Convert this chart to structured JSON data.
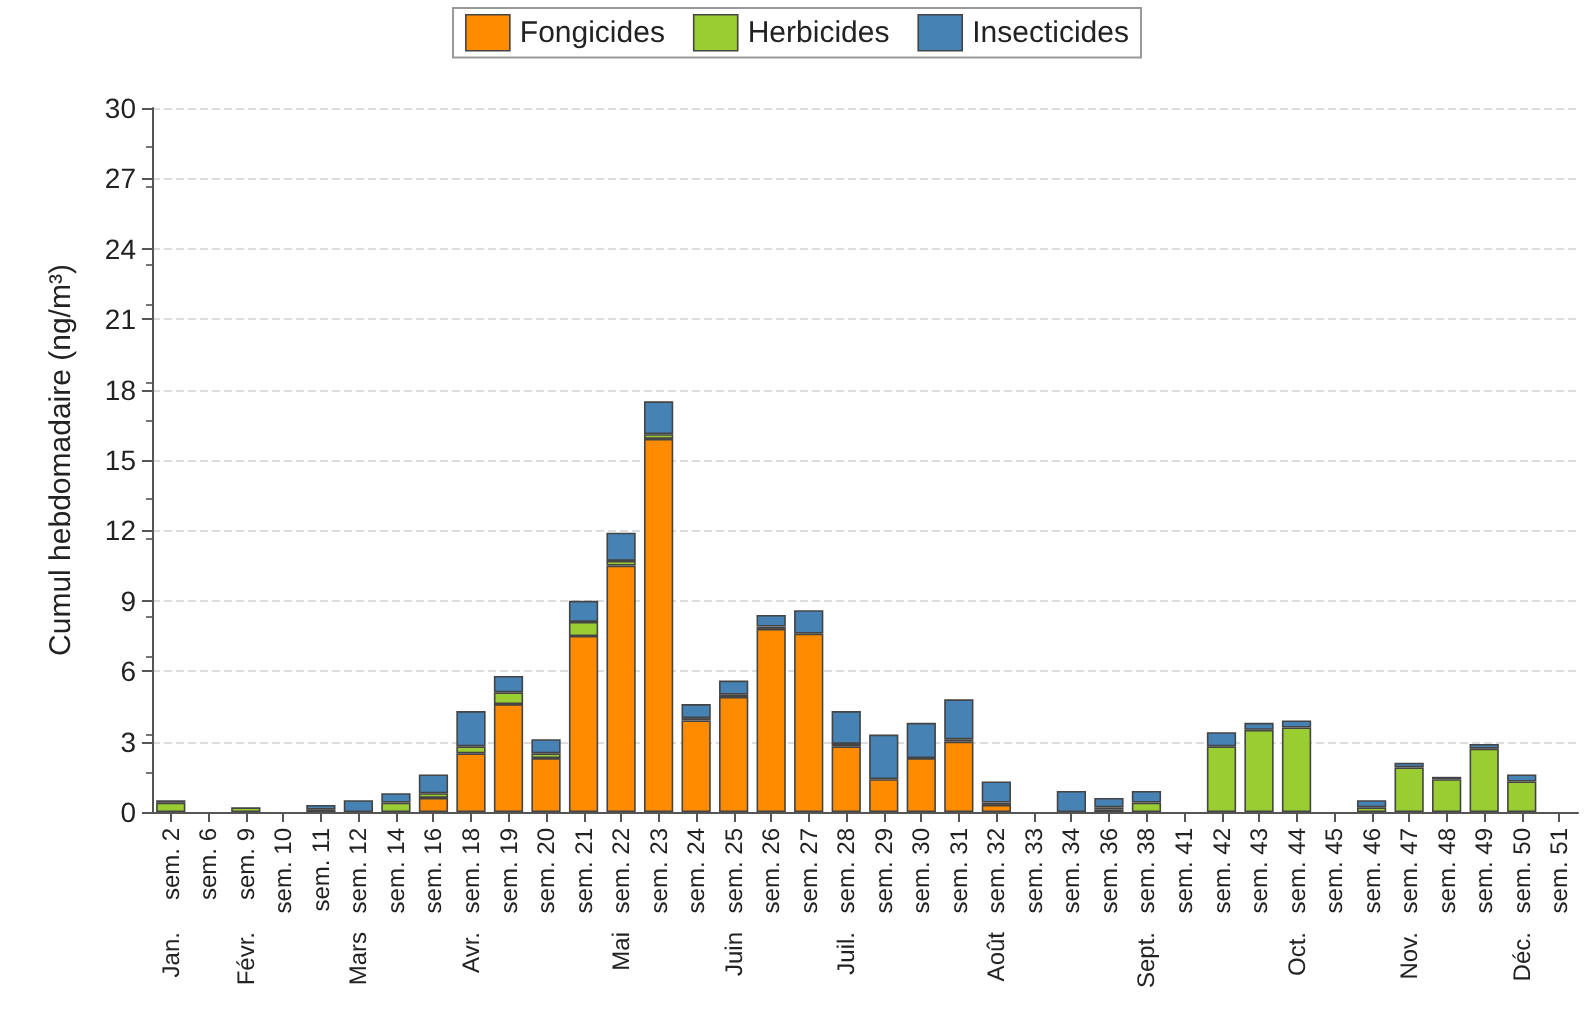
{
  "chart_data": {
    "type": "bar",
    "stacked": true,
    "ylabel": "Cumul hebdomadaire (ng/m³)",
    "categories": [
      "sem. 2",
      "sem. 6",
      "sem. 9",
      "sem. 10",
      "sem. 11",
      "sem. 12",
      "sem. 14",
      "sem. 16",
      "sem. 18",
      "sem. 19",
      "sem. 20",
      "sem. 21",
      "sem. 22",
      "sem. 23",
      "sem. 24",
      "sem. 25",
      "sem. 26",
      "sem. 27",
      "sem. 28",
      "sem. 29",
      "sem. 30",
      "sem. 31",
      "sem. 32",
      "sem. 33",
      "sem. 34",
      "sem. 36",
      "sem. 38",
      "sem. 41",
      "sem. 42",
      "sem. 43",
      "sem. 44",
      "sem. 45",
      "sem. 46",
      "sem. 47",
      "sem. 48",
      "sem. 49",
      "sem. 50",
      "sem. 51"
    ],
    "series": [
      {
        "name": "Fongicides",
        "color": "#ff8c00",
        "values": [
          0,
          0,
          0,
          0,
          0,
          0,
          0,
          0.6,
          2.5,
          4.6,
          2.3,
          7.5,
          10.5,
          15.9,
          3.9,
          4.9,
          7.8,
          7.6,
          2.8,
          1.4,
          2.3,
          3.0,
          0.3,
          0,
          0,
          0.1,
          0,
          0,
          0,
          0,
          0,
          0,
          0,
          0,
          0,
          0,
          0,
          0
        ]
      },
      {
        "name": "Herbicides",
        "color": "#9acd32",
        "values": [
          0.4,
          0,
          0.2,
          0,
          0.1,
          0,
          0.4,
          0.2,
          0.3,
          0.5,
          0.2,
          0.6,
          0.2,
          0.2,
          0.1,
          0.1,
          0.1,
          0,
          0.1,
          0,
          0,
          0.1,
          0.1,
          0,
          0,
          0.1,
          0.4,
          0,
          2.8,
          3.5,
          3.6,
          0,
          0.2,
          1.9,
          1.4,
          2.7,
          1.3,
          0
        ]
      },
      {
        "name": "Insecticides",
        "color": "#4682b4",
        "values": [
          0.1,
          0,
          0,
          0,
          0.2,
          0.5,
          0.4,
          0.8,
          1.5,
          0.7,
          0.6,
          0.9,
          1.2,
          1.4,
          0.6,
          0.6,
          0.5,
          1.0,
          1.4,
          1.9,
          1.5,
          1.7,
          0.9,
          0,
          0.9,
          0.4,
          0.5,
          0,
          0.6,
          0.3,
          0.3,
          0,
          0.3,
          0.2,
          0.1,
          0.2,
          0.3,
          0
        ]
      }
    ],
    "ylim": [
      0,
      30
    ],
    "yticks": [
      0,
      3,
      6,
      9,
      12,
      15,
      18,
      21,
      24,
      27,
      30
    ],
    "grid": "y",
    "legend": "top",
    "annotations": [
      "Jan.",
      "Févr.",
      "Mars",
      "Avr.",
      "Mai",
      "Juin",
      "Juil.",
      "Août",
      "Sept.",
      "Oct.",
      "Nov.",
      "Déc."
    ]
  }
}
